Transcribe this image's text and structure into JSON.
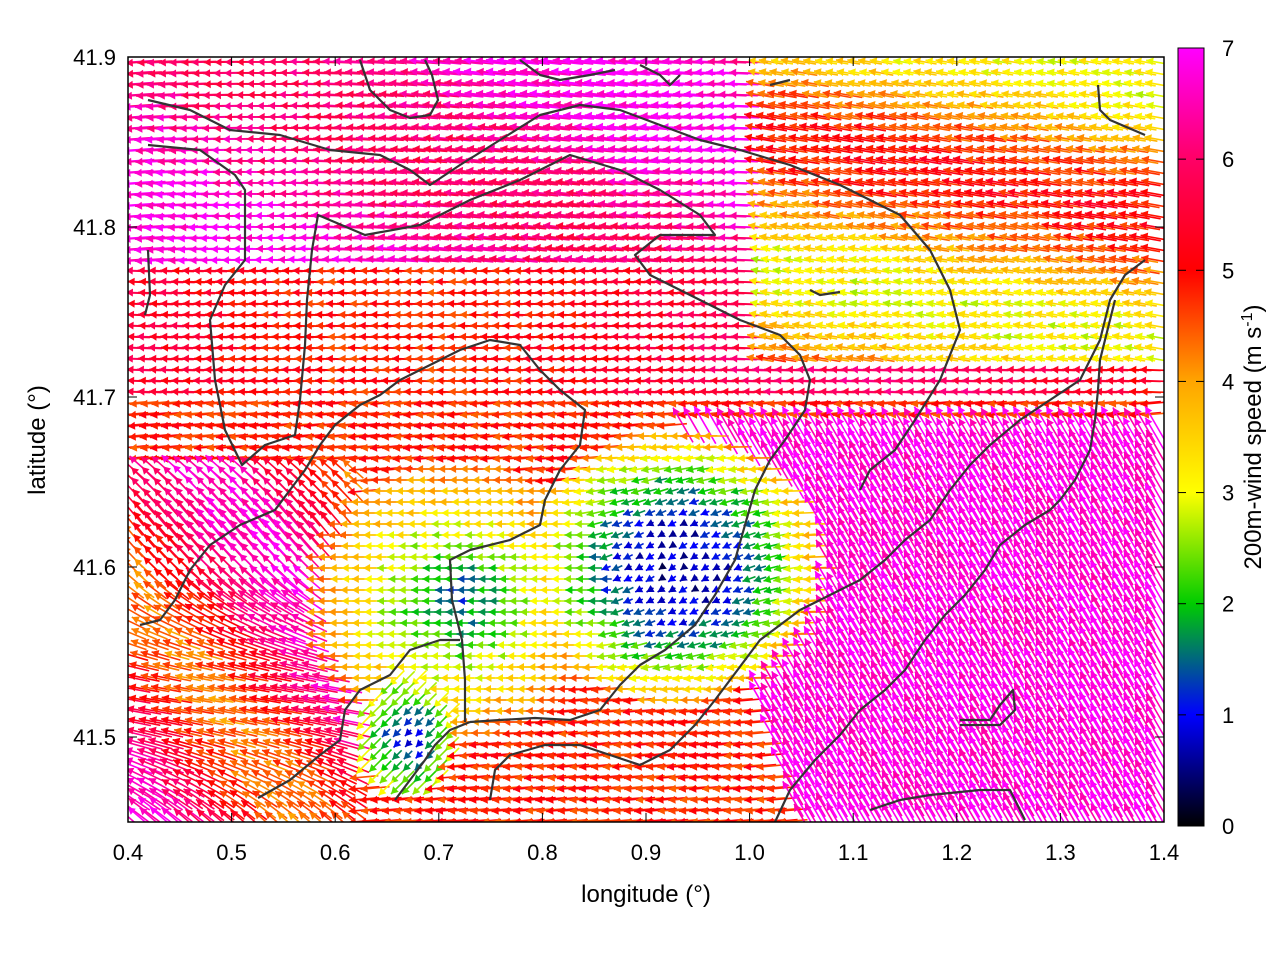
{
  "chart_data": {
    "type": "vector-field",
    "xlabel": "longitude (°)",
    "ylabel": "latitude (°)",
    "xlim": [
      0.4,
      1.4
    ],
    "ylim": [
      41.45,
      41.9
    ],
    "xticks": [
      "0.4",
      "0.5",
      "0.6",
      "0.7",
      "0.8",
      "0.9",
      "1.0",
      "1.1",
      "1.2",
      "1.3",
      "1.4"
    ],
    "yticks": [
      "41.5",
      "41.6",
      "41.7",
      "41.8",
      "41.9"
    ],
    "xtick_values": [
      0.4,
      0.5,
      0.6,
      0.7,
      0.8,
      0.9,
      1.0,
      1.1,
      1.2,
      1.3,
      1.4
    ],
    "ytick_values": [
      41.5,
      41.6,
      41.7,
      41.8,
      41.9
    ],
    "colorbar": {
      "label_main": "200m-wind speed (m s",
      "label_sup": "-1",
      "label_end": ")",
      "range": [
        0,
        7
      ],
      "ticks": [
        "0",
        "1",
        "2",
        "3",
        "4",
        "5",
        "6",
        "7"
      ],
      "tick_values": [
        0,
        1,
        2,
        3,
        4,
        5,
        6,
        7
      ],
      "colormap": [
        "#000000",
        "#0000ff",
        "#00cc00",
        "#ffff00",
        "#ffa500",
        "#ff0000",
        "#ff00ff"
      ]
    },
    "wind_regions": [
      {
        "region": "north band (41.78-41.9)",
        "direction_deg_to": 180,
        "speed_ms": 6.5
      },
      {
        "region": "central band (41.66-41.78)",
        "direction_deg_to": 178,
        "speed_ms": 5.5
      },
      {
        "region": "calm zone near (0.95, 41.6)",
        "direction_deg_to": 200,
        "speed_ms": 1.0
      },
      {
        "region": "southeast (1.0-1.4, 41.45-41.68)",
        "direction_deg_to": 300,
        "speed_ms": 6.8
      },
      {
        "region": "southwest (0.4-0.6, 41.45-41.65)",
        "direction_deg_to": 330,
        "speed_ms": 6.0
      }
    ],
    "grid": false
  }
}
